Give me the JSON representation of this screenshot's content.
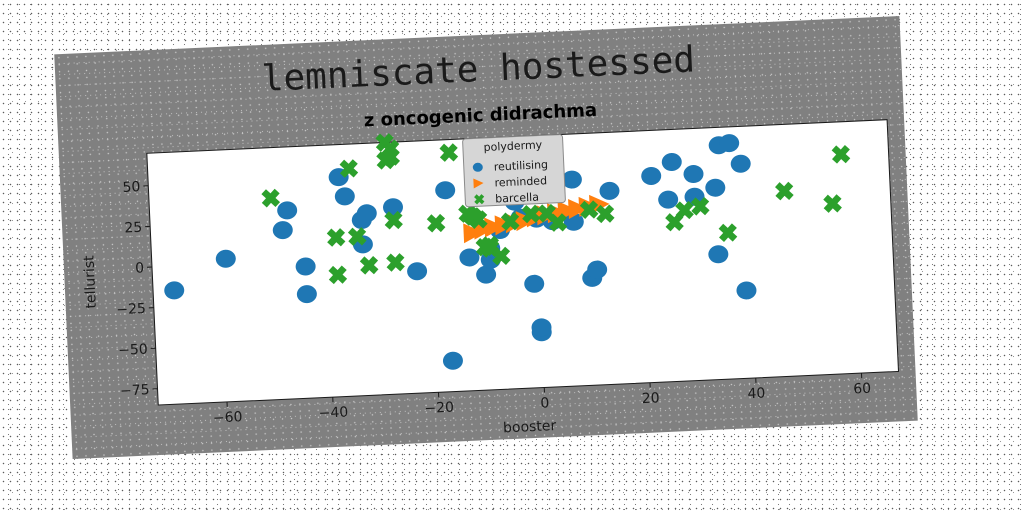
{
  "figure": {
    "suptitle": "lemniscate hostessed"
  },
  "chart_data": {
    "type": "scatter",
    "title": "z oncogenic didrachma",
    "xlabel": "booster",
    "ylabel": "tellurist",
    "xlim": [
      -73,
      67
    ],
    "ylim": [
      -85,
      70
    ],
    "xticks": [
      -60,
      -40,
      -20,
      0,
      20,
      40,
      60
    ],
    "xtick_labels": [
      "−60",
      "−40",
      "−20",
      "0",
      "20",
      "40",
      "60"
    ],
    "yticks": [
      -75,
      -50,
      -25,
      0,
      25,
      50
    ],
    "ytick_labels": [
      "−75",
      "−50",
      "−25",
      "0",
      "25",
      "50"
    ],
    "grid": false,
    "legend": {
      "title": "polydermy",
      "placement": "top-center"
    },
    "series": [
      {
        "name": "reutilising",
        "marker": "circle",
        "color": "#1f77b4",
        "points": [
          [
            -69,
            -15
          ],
          [
            -59,
            3
          ],
          [
            -48,
            19
          ],
          [
            -47,
            31
          ],
          [
            -44,
            -4
          ],
          [
            -44,
            -21
          ],
          [
            -37,
            50
          ],
          [
            -36,
            38
          ],
          [
            -33,
            23
          ],
          [
            -33,
            8
          ],
          [
            -32,
            27
          ],
          [
            -27,
            30
          ],
          [
            -23,
            -10
          ],
          [
            -17,
            39
          ],
          [
            -17,
            -66
          ],
          [
            -13,
            -3
          ],
          [
            -10,
            -14
          ],
          [
            -9,
            -5
          ],
          [
            -9,
            2
          ],
          [
            -7,
            13
          ],
          [
            -4,
            30
          ],
          [
            -3,
            20
          ],
          [
            -1,
            -21
          ],
          [
            0,
            -51
          ],
          [
            0,
            -48
          ],
          [
            0,
            19
          ],
          [
            3,
            17
          ],
          [
            7,
            16
          ],
          [
            7,
            42
          ],
          [
            10,
            -19
          ],
          [
            11,
            -14
          ],
          [
            14,
            34
          ],
          [
            22,
            42
          ],
          [
            25,
            27
          ],
          [
            26,
            50
          ],
          [
            30,
            28
          ],
          [
            30,
            42
          ],
          [
            34,
            33
          ],
          [
            34,
            -8
          ],
          [
            35,
            59
          ],
          [
            37,
            60
          ],
          [
            39,
            47
          ],
          [
            39,
            -31
          ]
        ]
      },
      {
        "name": "reminded",
        "marker": "triangle-right",
        "color": "#ff7f0e",
        "points": [
          [
            -12,
            12
          ],
          [
            -10,
            14
          ],
          [
            -8,
            15
          ],
          [
            -6,
            16
          ],
          [
            -4,
            17
          ],
          [
            -2,
            18
          ],
          [
            0,
            20
          ],
          [
            2,
            21
          ],
          [
            4,
            22
          ],
          [
            6,
            23
          ],
          [
            8,
            24
          ],
          [
            10,
            25
          ],
          [
            12,
            26
          ]
        ]
      },
      {
        "name": "barcella",
        "marker": "x",
        "color": "#2ca02c",
        "points": [
          [
            -50,
            39
          ],
          [
            -38,
            13
          ],
          [
            -38,
            -10
          ],
          [
            -35,
            55
          ],
          [
            -34,
            13
          ],
          [
            -32,
            -5
          ],
          [
            -28,
            70
          ],
          [
            -28,
            59
          ],
          [
            -27,
            61
          ],
          [
            -27,
            66
          ],
          [
            -27,
            22
          ],
          [
            -27,
            -4
          ],
          [
            -19,
            19
          ],
          [
            -16,
            62
          ],
          [
            -13,
            24
          ],
          [
            -12,
            22
          ],
          [
            -11,
            20
          ],
          [
            -10,
            3
          ],
          [
            -9,
            2
          ],
          [
            -9,
            4
          ],
          [
            -7,
            -3
          ],
          [
            -5,
            18
          ],
          [
            -1,
            22
          ],
          [
            2,
            22
          ],
          [
            4,
            16
          ],
          [
            10,
            23
          ],
          [
            13,
            20
          ],
          [
            26,
            13
          ],
          [
            28,
            20
          ],
          [
            31,
            22
          ],
          [
            36,
            5
          ],
          [
            47,
            29
          ],
          [
            56,
            20
          ],
          [
            58,
            50
          ]
        ]
      }
    ]
  }
}
